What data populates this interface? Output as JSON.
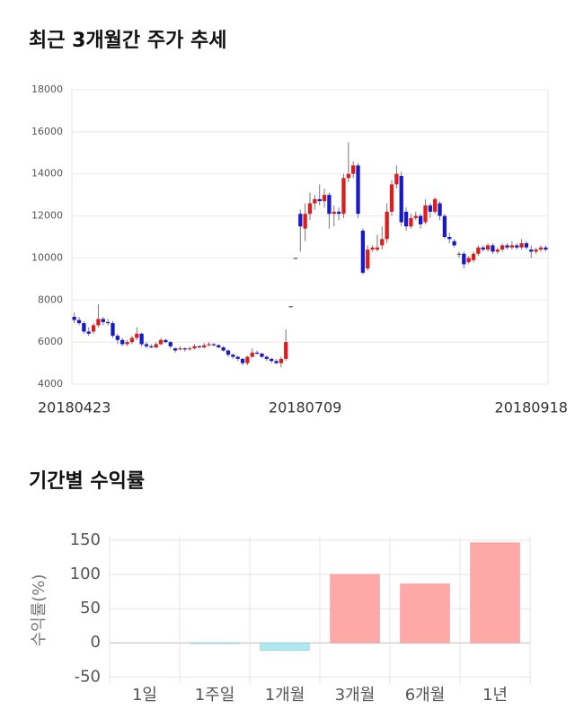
{
  "chart_data": [
    {
      "type": "candlestick",
      "title": "최근 3개월간 주가 추세",
      "categories": [
        "20180423",
        null,
        null,
        null,
        null,
        null,
        null,
        null,
        null,
        null,
        null,
        null,
        null,
        null,
        null,
        null,
        null,
        null,
        null,
        null,
        null,
        null,
        null,
        null,
        null,
        null,
        null,
        null,
        null,
        null,
        null,
        null,
        null,
        null,
        null,
        null,
        null,
        null,
        null,
        null,
        null,
        null,
        null,
        null,
        null,
        null,
        null,
        null,
        "20180709",
        null,
        null,
        null,
        null,
        null,
        null,
        null,
        null,
        null,
        null,
        null,
        null,
        null,
        null,
        null,
        null,
        null,
        null,
        null,
        null,
        null,
        null,
        null,
        null,
        null,
        null,
        null,
        null,
        null,
        null,
        null,
        null,
        null,
        null,
        null,
        null,
        null,
        null,
        null,
        null,
        null,
        null,
        null,
        null,
        null,
        null,
        "20180918",
        null,
        null,
        null
      ],
      "open": [
        7200,
        7050,
        6900,
        6500,
        6500,
        6800,
        7100,
        6950,
        6900,
        6300,
        6100,
        5900,
        6000,
        6200,
        6400,
        5900,
        5800,
        5750,
        5900,
        6100,
        6000,
        5700,
        5650,
        5700,
        5650,
        5700,
        5800,
        5750,
        5850,
        5900,
        5850,
        5750,
        5600,
        5400,
        5300,
        5200,
        5000,
        5300,
        5500,
        5450,
        5300,
        5200,
        5100,
        5000,
        5200,
        7700,
        10000,
        12100,
        11400,
        12100,
        12600,
        12800,
        12700,
        13000,
        12100,
        12200,
        12100,
        13800,
        14000,
        14400,
        11300,
        9500,
        10400,
        10400,
        10600,
        10900,
        12200,
        13500,
        13900,
        12200,
        11500,
        11900,
        12000,
        11700,
        12500,
        12200,
        12600,
        12000,
        11000,
        10800,
        10200,
        10200,
        9800,
        9900,
        10200,
        10500,
        10400,
        10600,
        10300,
        10400,
        10600,
        10500,
        10600,
        10500,
        10700,
        10400,
        10300,
        10400,
        10500
      ],
      "high": [
        7400,
        7200,
        7000,
        6700,
        6900,
        7800,
        7200,
        7100,
        7000,
        6400,
        6200,
        6100,
        6300,
        6700,
        6450,
        6000,
        5900,
        6000,
        6200,
        6150,
        6050,
        5750,
        5800,
        5750,
        5800,
        5900,
        5850,
        5950,
        6000,
        5950,
        5900,
        5800,
        5650,
        5450,
        5350,
        5250,
        5350,
        5700,
        5600,
        5500,
        5350,
        5250,
        5200,
        5300,
        6600,
        7700,
        10000,
        12300,
        12600,
        13100,
        13000,
        13500,
        13300,
        13100,
        12500,
        12400,
        14000,
        15500,
        14600,
        14500,
        11400,
        10600,
        10600,
        11100,
        11500,
        12600,
        13700,
        14400,
        14100,
        12400,
        12100,
        12200,
        12100,
        12800,
        12600,
        12900,
        12700,
        12100,
        11200,
        10900,
        10300,
        10300,
        10100,
        10300,
        10600,
        10600,
        10700,
        10700,
        10500,
        10700,
        10700,
        10800,
        10700,
        10900,
        10800,
        10600,
        10500,
        10600,
        10600
      ],
      "low": [
        6900,
        6800,
        6400,
        6300,
        6400,
        6700,
        6800,
        6800,
        6200,
        5900,
        5800,
        5800,
        5900,
        6100,
        5800,
        5700,
        5700,
        5700,
        5850,
        5950,
        5700,
        5500,
        5600,
        5550,
        5600,
        5650,
        5700,
        5700,
        5800,
        5800,
        5700,
        5550,
        5300,
        5200,
        5100,
        4900,
        4900,
        5250,
        5400,
        5250,
        5100,
        5000,
        4950,
        4800,
        5100,
        7700,
        10000,
        10300,
        10800,
        11800,
        12300,
        12500,
        12400,
        11400,
        11500,
        11800,
        11900,
        13600,
        13800,
        11900,
        9200,
        9400,
        10300,
        10300,
        10400,
        10700,
        12000,
        13300,
        11500,
        11300,
        11400,
        11800,
        11400,
        11600,
        11900,
        12100,
        11800,
        10900,
        10700,
        10500,
        10000,
        9500,
        9700,
        9800,
        10100,
        10300,
        10300,
        10200,
        10200,
        10300,
        10400,
        10400,
        10400,
        10400,
        10400,
        10000,
        10200,
        10300,
        10300
      ],
      "close": [
        7050,
        6900,
        6500,
        6400,
        6800,
        7100,
        6950,
        6900,
        6300,
        6100,
        5900,
        6000,
        6200,
        6400,
        5900,
        5800,
        5750,
        5900,
        6100,
        6000,
        5800,
        5600,
        5700,
        5650,
        5700,
        5800,
        5750,
        5850,
        5900,
        5850,
        5750,
        5600,
        5400,
        5300,
        5200,
        5000,
        5300,
        5500,
        5450,
        5300,
        5200,
        5100,
        5000,
        5200,
        6000,
        7700,
        10000,
        11500,
        12100,
        12600,
        12800,
        12700,
        13000,
        12100,
        12200,
        12100,
        13800,
        14000,
        14400,
        12100,
        9300,
        10400,
        10500,
        10500,
        10900,
        12200,
        13500,
        14000,
        11700,
        11500,
        11900,
        12000,
        11600,
        12500,
        12200,
        12800,
        12000,
        11000,
        10900,
        10600,
        10200,
        9700,
        10000,
        10200,
        10500,
        10400,
        10600,
        10300,
        10400,
        10600,
        10500,
        10600,
        10500,
        10700,
        10500,
        10300,
        10400,
        10500,
        10400
      ],
      "up_color": "#dd1c1c",
      "down_color": "#1818cc",
      "ylim": [
        4000,
        18000
      ],
      "yticks": [
        4000,
        6000,
        8000,
        10000,
        12000,
        14000,
        16000,
        18000
      ],
      "grid": true
    },
    {
      "type": "bar",
      "title": "기간별 수익률",
      "y_label": "수익률(%)",
      "categories": [
        "1일",
        "1주일",
        "1개월",
        "3개월",
        "6개월",
        "1년"
      ],
      "values": [
        0,
        -1,
        -11,
        100,
        86,
        146
      ],
      "positive_color": "#ffa8a8",
      "negative_color": "#b0e8f0",
      "ylim": [
        -60,
        155
      ],
      "yticks": [
        -50,
        0,
        50,
        100,
        150
      ],
      "grid": true
    }
  ]
}
